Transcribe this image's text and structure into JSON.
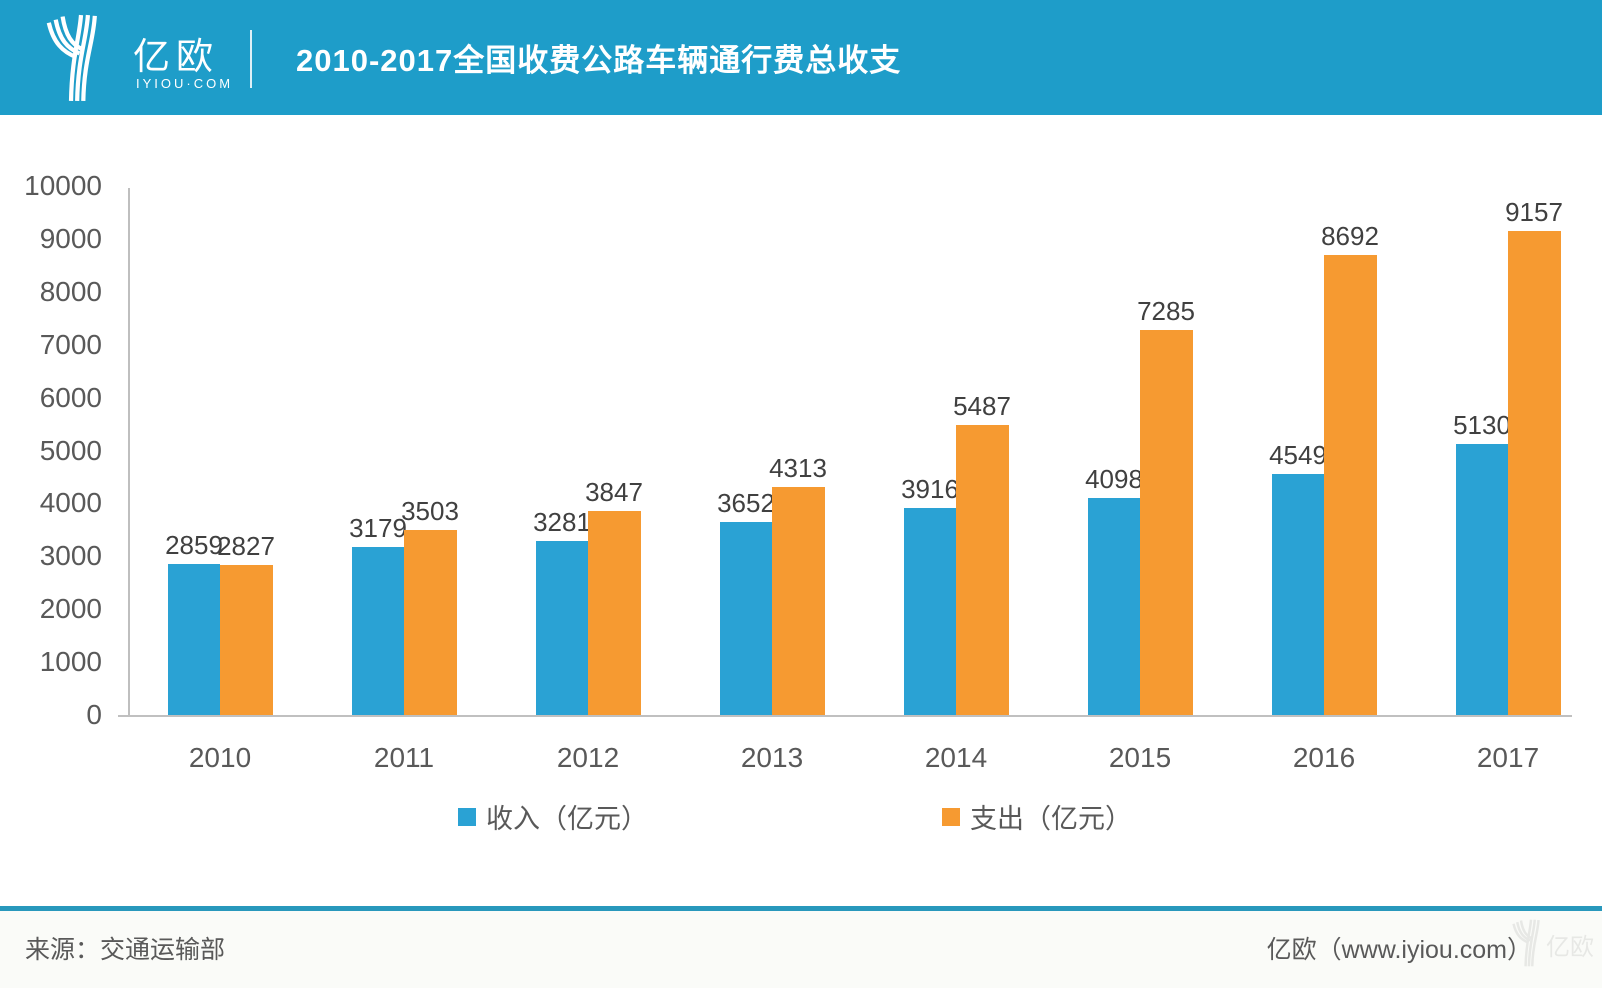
{
  "header": {
    "brand": {
      "name": "亿欧",
      "domain": "IYIOU·COM"
    },
    "title": "2010-2017全国收费公路车辆通行费总收支"
  },
  "chart_data": {
    "type": "bar",
    "title": "2010-2017全国收费公路车辆通行费总收支",
    "categories": [
      "2010",
      "2011",
      "2012",
      "2013",
      "2014",
      "2015",
      "2016",
      "2017"
    ],
    "series": [
      {
        "name": "收入（亿元）",
        "color": "#2aa2d4",
        "values": [
          2859,
          3179,
          3281,
          3652,
          3916,
          4098,
          4549,
          5130
        ]
      },
      {
        "name": "支出（亿元）",
        "color": "#f69a31",
        "values": [
          2827,
          3503,
          3847,
          4313,
          5487,
          7285,
          8692,
          9157
        ]
      }
    ],
    "xlabel": "",
    "ylabel": "",
    "ylim": [
      0,
      10000
    ],
    "ytick_step": 1000,
    "grid": false,
    "legend_position": "bottom",
    "bar_value_labels": true
  },
  "footer": {
    "source": "来源：交通运输部",
    "credit": "亿欧（www.iyiou.com）",
    "watermark": "亿欧"
  },
  "colors": {
    "header_bg": "#1e9dc9",
    "income_bar": "#2aa2d4",
    "expense_bar": "#f69a31",
    "axis_line": "#bfbfbf",
    "tick_label": "#595959",
    "value_label": "#404040",
    "footer_divider": "#2898bc",
    "footer_bg": "#fafbf8"
  }
}
